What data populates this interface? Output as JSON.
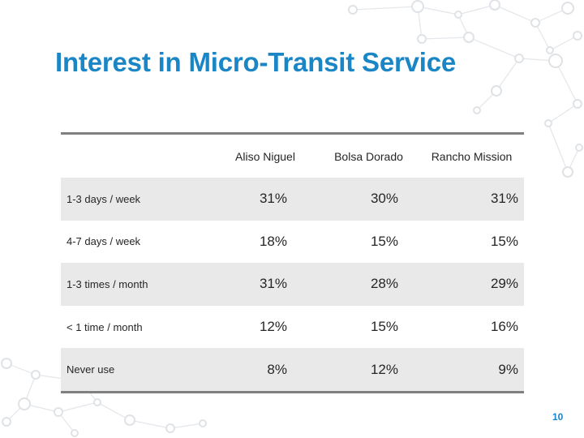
{
  "slide": {
    "title": "Interest in Micro-Transit Service",
    "page_number": "10"
  },
  "table": {
    "columns": [
      "",
      "Aliso Niguel",
      "Bolsa Dorado",
      "Rancho Mission"
    ],
    "rows": [
      {
        "label": "1-3 days / week",
        "values": [
          "31%",
          "30%",
          "31%"
        ]
      },
      {
        "label": "4-7 days / week",
        "values": [
          "18%",
          "15%",
          "15%"
        ]
      },
      {
        "label": "1-3 times / month",
        "values": [
          "31%",
          "28%",
          "29%"
        ]
      },
      {
        "label": "< 1 time / month",
        "values": [
          "12%",
          "15%",
          "16%"
        ]
      },
      {
        "label": "Never use",
        "values": [
          "8%",
          "12%",
          "9%"
        ]
      }
    ]
  },
  "colors": {
    "accent": "#1b86c6",
    "row_shade": "#e9e9e9",
    "rule": "#808080"
  }
}
